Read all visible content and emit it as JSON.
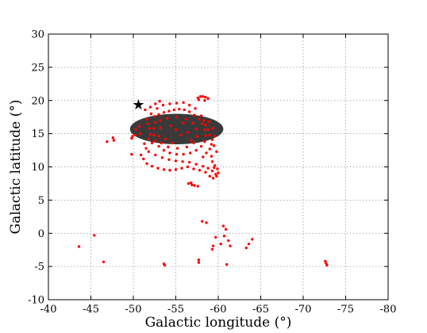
{
  "chart_data": {
    "type": "scatter",
    "title": "",
    "xlabel": "Galactic longitude (°)",
    "ylabel": "Galactic latitude (°)",
    "xlim": [
      -40,
      -80
    ],
    "ylim": [
      -10,
      30
    ],
    "x_ticks": [
      -40,
      -45,
      -50,
      -55,
      -60,
      -65,
      -70,
      -75,
      -80
    ],
    "x_tick_labels": [
      "-40",
      "-45",
      "-50",
      "-55",
      "-60",
      "-65",
      "-70",
      "-75",
      "-80"
    ],
    "y_ticks": [
      -10,
      -5,
      0,
      5,
      10,
      15,
      20,
      25,
      30
    ],
    "y_tick_labels": [
      "-10",
      "-5",
      "0",
      "5",
      "10",
      "15",
      "20",
      "25",
      "30"
    ],
    "grid": true,
    "colors": {
      "points": "#ff0000",
      "region": "#3a3a3a",
      "marker": "#000000",
      "grid": "#9a9a9a"
    },
    "series": [
      {
        "kind": "scatter",
        "color": "#ff0000",
        "points": [
          [
            -52.5,
            17.6
          ],
          [
            -53.0,
            17.9
          ],
          [
            -53.6,
            18.2
          ],
          [
            -54.2,
            18.4
          ],
          [
            -54.8,
            18.6
          ],
          [
            -55.4,
            18.7
          ],
          [
            -56.0,
            18.6
          ],
          [
            -56.6,
            18.3
          ],
          [
            -57.2,
            17.8
          ],
          [
            -57.7,
            17.2
          ],
          [
            -58.1,
            16.5
          ],
          [
            -58.4,
            15.6
          ],
          [
            -58.5,
            14.7
          ],
          [
            -58.4,
            13.8
          ],
          [
            -58.0,
            13.1
          ],
          [
            -57.4,
            12.5
          ],
          [
            -56.7,
            12.1
          ],
          [
            -55.9,
            11.9
          ],
          [
            -55.1,
            11.9
          ],
          [
            -54.3,
            12.1
          ],
          [
            -53.6,
            12.5
          ],
          [
            -53.0,
            13.1
          ],
          [
            -52.6,
            13.9
          ],
          [
            -52.4,
            14.8
          ],
          [
            -52.4,
            15.8
          ],
          [
            -52.6,
            16.7
          ],
          [
            -53.2,
            17.0
          ],
          [
            -54.0,
            17.3
          ],
          [
            -55.1,
            17.5
          ],
          [
            -56.2,
            17.2
          ],
          [
            -57.0,
            16.6
          ],
          [
            -57.4,
            15.7
          ],
          [
            -57.5,
            14.6
          ],
          [
            -57.1,
            13.6
          ],
          [
            -56.3,
            13.0
          ],
          [
            -55.2,
            12.8
          ],
          [
            -54.1,
            13.0
          ],
          [
            -53.3,
            13.6
          ],
          [
            -53.0,
            14.6
          ],
          [
            -53.2,
            15.9
          ],
          [
            -55.0,
            15.6
          ],
          [
            -55.6,
            14.8
          ],
          [
            -54.4,
            16.2
          ],
          [
            -56.4,
            15.2
          ],
          [
            -53.8,
            14.2
          ],
          [
            -55.9,
            16.6
          ],
          [
            -54.6,
            13.6
          ],
          [
            -56.8,
            14.0
          ],
          [
            -51.7,
            16.5
          ],
          [
            -51.9,
            15.8
          ],
          [
            -52.0,
            14.9
          ],
          [
            -51.8,
            14.2
          ],
          [
            -52.2,
            13.6
          ],
          [
            -51.6,
            17.2
          ],
          [
            -52.1,
            18.0
          ],
          [
            -52.8,
            18.8
          ],
          [
            -53.5,
            19.3
          ],
          [
            -54.3,
            19.5
          ],
          [
            -55.1,
            19.6
          ],
          [
            -55.9,
            19.7
          ],
          [
            -56.6,
            19.3
          ],
          [
            -57.3,
            18.8
          ],
          [
            -57.6,
            20.4
          ],
          [
            -57.9,
            20.6
          ],
          [
            -58.2,
            20.6
          ],
          [
            -58.5,
            20.5
          ],
          [
            -58.8,
            20.3
          ],
          [
            -57.7,
            20.1
          ],
          [
            -58.4,
            20.0
          ],
          [
            -58.0,
            17.7
          ],
          [
            -58.3,
            17.0
          ],
          [
            -58.5,
            16.3
          ],
          [
            -58.8,
            15.6
          ],
          [
            -59.0,
            14.8
          ],
          [
            -59.3,
            14.1
          ],
          [
            -59.2,
            13.4
          ],
          [
            -59.0,
            12.7
          ],
          [
            -58.6,
            12.1
          ],
          [
            -58.2,
            11.5
          ],
          [
            -58.9,
            16.8
          ],
          [
            -59.4,
            15.8
          ],
          [
            -59.6,
            14.6
          ],
          [
            -59.5,
            13.2
          ],
          [
            -59.8,
            12.3
          ],
          [
            -59.2,
            11.6
          ],
          [
            -59.3,
            10.8
          ],
          [
            -59.6,
            10.2
          ],
          [
            -59.9,
            9.7
          ],
          [
            -60.0,
            9.1
          ],
          [
            -59.8,
            8.6
          ],
          [
            -59.4,
            8.3
          ],
          [
            -59.0,
            8.6
          ],
          [
            -59.3,
            9.4
          ],
          [
            -59.7,
            8.9
          ],
          [
            -59.5,
            9.9
          ],
          [
            -51.8,
            12.3
          ],
          [
            -52.6,
            11.8
          ],
          [
            -53.4,
            11.4
          ],
          [
            -54.2,
            11.1
          ],
          [
            -55.0,
            10.9
          ],
          [
            -55.8,
            10.8
          ],
          [
            -56.6,
            10.7
          ],
          [
            -57.4,
            10.4
          ],
          [
            -58.2,
            10.1
          ],
          [
            -58.8,
            9.8
          ],
          [
            -51.6,
            10.5
          ],
          [
            -52.2,
            10.1
          ],
          [
            -52.9,
            9.8
          ],
          [
            -53.6,
            9.6
          ],
          [
            -54.3,
            9.5
          ],
          [
            -55.0,
            9.6
          ],
          [
            -55.7,
            9.8
          ],
          [
            -56.4,
            10.0
          ],
          [
            -57.1,
            9.7
          ],
          [
            -57.8,
            9.5
          ],
          [
            -58.5,
            9.2
          ],
          [
            -51.2,
            11.2
          ],
          [
            -51.5,
            12.8
          ],
          [
            -51.3,
            13.5
          ],
          [
            -50.9,
            11.8
          ],
          [
            -50.3,
            15.6
          ],
          [
            -50.7,
            16.1
          ],
          [
            -50.8,
            15.0
          ],
          [
            -49.8,
            14.3
          ],
          [
            -50.2,
            14.8
          ],
          [
            -49.9,
            14.6
          ],
          [
            -52.0,
            19.0
          ],
          [
            -52.6,
            19.5
          ],
          [
            -51.4,
            18.6
          ],
          [
            -53.1,
            19.9
          ],
          [
            -56.5,
            7.5
          ],
          [
            -56.9,
            7.3
          ],
          [
            -57.2,
            7.2
          ],
          [
            -57.6,
            7.1
          ],
          [
            -56.8,
            7.6
          ],
          [
            -46.9,
            13.8
          ],
          [
            -47.6,
            14.4
          ],
          [
            -47.7,
            14.0
          ],
          [
            -49.8,
            11.9
          ],
          [
            -58.1,
            1.8
          ],
          [
            -58.6,
            1.6
          ],
          [
            -60.6,
            1.1
          ],
          [
            -60.9,
            0.6
          ],
          [
            -60.7,
            -0.4
          ],
          [
            -61.2,
            -1.1
          ],
          [
            -59.7,
            -0.6
          ],
          [
            -59.4,
            -1.9
          ],
          [
            -59.3,
            -2.4
          ],
          [
            -60.3,
            -1.6
          ],
          [
            -61.4,
            -1.9
          ],
          [
            -64.0,
            -0.9
          ],
          [
            -63.6,
            -1.6
          ],
          [
            -63.3,
            -2.2
          ],
          [
            -45.4,
            -0.3
          ],
          [
            -43.6,
            -2.0
          ],
          [
            -46.5,
            -4.3
          ],
          [
            -53.6,
            -4.6
          ],
          [
            -53.7,
            -4.8
          ],
          [
            -57.7,
            -4.0
          ],
          [
            -57.7,
            -4.4
          ],
          [
            -61.0,
            -4.7
          ],
          [
            -72.6,
            -4.2
          ],
          [
            -72.7,
            -4.5
          ],
          [
            -72.8,
            -4.8
          ]
        ]
      }
    ],
    "region": {
      "kind": "ellipse",
      "color": "#3a3a3a",
      "center": [
        -55.1,
        15.7
      ],
      "radii": [
        5.5,
        2.3
      ]
    },
    "marker": {
      "symbol": "★",
      "x": -50.6,
      "y": 19.4,
      "color": "#000000"
    }
  }
}
